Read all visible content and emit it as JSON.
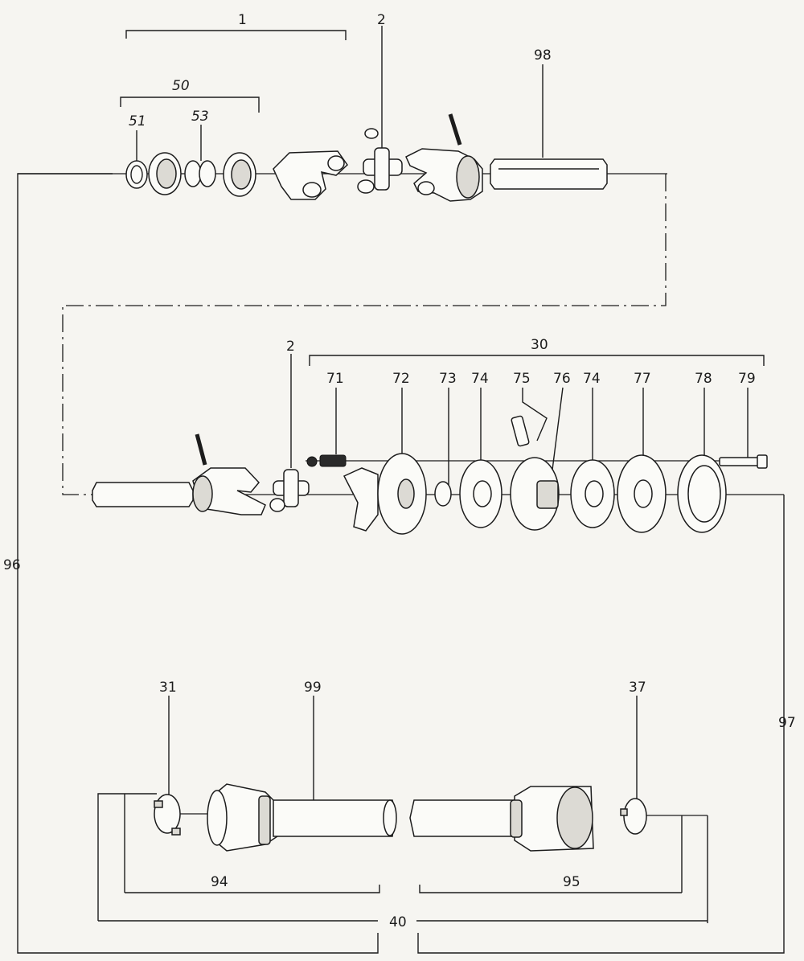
{
  "labels": {
    "l1": "1",
    "l2a": "2",
    "l98": "98",
    "l50": "50",
    "l51": "51",
    "l53": "53",
    "l2b": "2",
    "l30": "30",
    "l71": "71",
    "l72": "72",
    "l73": "73",
    "l74a": "74",
    "l75": "75",
    "l76": "76",
    "l74b": "74",
    "l77": "77",
    "l78": "78",
    "l79": "79",
    "l96": "96",
    "l97": "97",
    "l31": "31",
    "l99": "99",
    "l37": "37",
    "l94": "94",
    "l95": "95",
    "l40": "40"
  }
}
